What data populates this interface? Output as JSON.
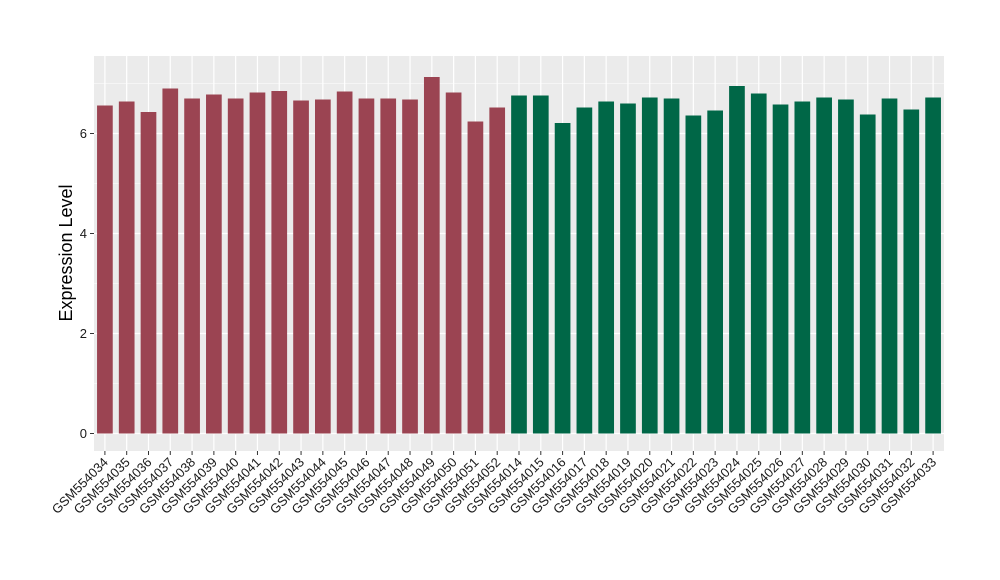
{
  "chart_data": {
    "type": "bar",
    "title": "",
    "xlabel": "",
    "ylabel": "Expression Level",
    "ylim": [
      -0.35,
      7.55
    ],
    "yticks": [
      0,
      2,
      4,
      6
    ],
    "grid": true,
    "legend": "none",
    "colors": {
      "group_a": "#9b4452",
      "group_b": "#006747",
      "panel": "#ebebeb",
      "grid": "#ffffff"
    },
    "categories": [
      "GSM554034",
      "GSM554035",
      "GSM554036",
      "GSM554037",
      "GSM554038",
      "GSM554039",
      "GSM554040",
      "GSM554041",
      "GSM554042",
      "GSM554043",
      "GSM554044",
      "GSM554045",
      "GSM554046",
      "GSM554047",
      "GSM554048",
      "GSM554049",
      "GSM554050",
      "GSM554051",
      "GSM554052",
      "GSM554014",
      "GSM554015",
      "GSM554016",
      "GSM554017",
      "GSM554018",
      "GSM554019",
      "GSM554020",
      "GSM554021",
      "GSM554022",
      "GSM554023",
      "GSM554024",
      "GSM554025",
      "GSM554026",
      "GSM554027",
      "GSM554028",
      "GSM554029",
      "GSM554030",
      "GSM554031",
      "GSM554032",
      "GSM554033"
    ],
    "values": [
      6.56,
      6.64,
      6.43,
      6.9,
      6.7,
      6.78,
      6.7,
      6.82,
      6.85,
      6.66,
      6.68,
      6.84,
      6.7,
      6.7,
      6.68,
      7.13,
      6.82,
      6.24,
      6.52,
      6.76,
      6.76,
      6.21,
      6.52,
      6.64,
      6.6,
      6.72,
      6.7,
      6.36,
      6.46,
      6.95,
      6.8,
      6.58,
      6.64,
      6.72,
      6.68,
      6.38,
      6.7,
      6.48,
      6.72
    ],
    "groups": [
      "a",
      "a",
      "a",
      "a",
      "a",
      "a",
      "a",
      "a",
      "a",
      "a",
      "a",
      "a",
      "a",
      "a",
      "a",
      "a",
      "a",
      "a",
      "a",
      "b",
      "b",
      "b",
      "b",
      "b",
      "b",
      "b",
      "b",
      "b",
      "b",
      "b",
      "b",
      "b",
      "b",
      "b",
      "b",
      "b",
      "b",
      "b",
      "b"
    ]
  }
}
